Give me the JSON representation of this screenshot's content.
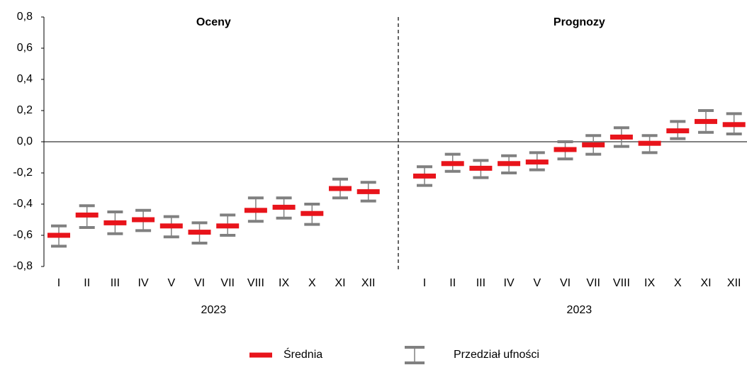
{
  "chart_data": {
    "type": "interval",
    "groups": [
      {
        "title": "Oceny",
        "label": "2023"
      },
      {
        "title": "Prognozy",
        "label": "2023"
      }
    ],
    "categories": [
      "I",
      "II",
      "III",
      "IV",
      "V",
      "VI",
      "VII",
      "VIII",
      "IX",
      "X",
      "XI",
      "XII",
      "I",
      "II",
      "III",
      "IV",
      "V",
      "VI",
      "VII",
      "VIII",
      "IX",
      "X",
      "XI",
      "XII"
    ],
    "ylim": [
      -0.8,
      0.8
    ],
    "yticks": [
      {
        "value": -0.8,
        "label": "-0,8"
      },
      {
        "value": -0.6,
        "label": "-0,6"
      },
      {
        "value": -0.4,
        "label": "-0,4"
      },
      {
        "value": -0.2,
        "label": "-0,2"
      },
      {
        "value": 0,
        "label": "0,0"
      },
      {
        "value": 0.2,
        "label": "0,2"
      },
      {
        "value": 0.4,
        "label": "0,4"
      },
      {
        "value": 0.6,
        "label": "0,6"
      },
      {
        "value": 0.8,
        "label": "0,8"
      }
    ],
    "series": [
      {
        "name": "Średnia",
        "color": "#e8141b",
        "values": [
          -0.6,
          -0.47,
          -0.52,
          -0.5,
          -0.54,
          -0.58,
          -0.54,
          -0.44,
          -0.42,
          -0.46,
          -0.3,
          -0.32,
          -0.22,
          -0.14,
          -0.17,
          -0.14,
          -0.13,
          -0.05,
          -0.02,
          0.03,
          -0.01,
          0.07,
          0.13,
          0.11
        ]
      },
      {
        "name": "Przedział ufności",
        "color": "#808080",
        "low": [
          -0.67,
          -0.55,
          -0.59,
          -0.57,
          -0.61,
          -0.65,
          -0.6,
          -0.51,
          -0.49,
          -0.53,
          -0.36,
          -0.38,
          -0.28,
          -0.19,
          -0.23,
          -0.2,
          -0.18,
          -0.11,
          -0.08,
          -0.03,
          -0.07,
          0.02,
          0.06,
          0.05
        ],
        "high": [
          -0.54,
          -0.41,
          -0.45,
          -0.44,
          -0.48,
          -0.52,
          -0.47,
          -0.36,
          -0.36,
          -0.4,
          -0.24,
          -0.26,
          -0.16,
          -0.08,
          -0.12,
          -0.09,
          -0.07,
          0.0,
          0.04,
          0.09,
          0.04,
          0.13,
          0.2,
          0.18
        ]
      }
    ]
  }
}
